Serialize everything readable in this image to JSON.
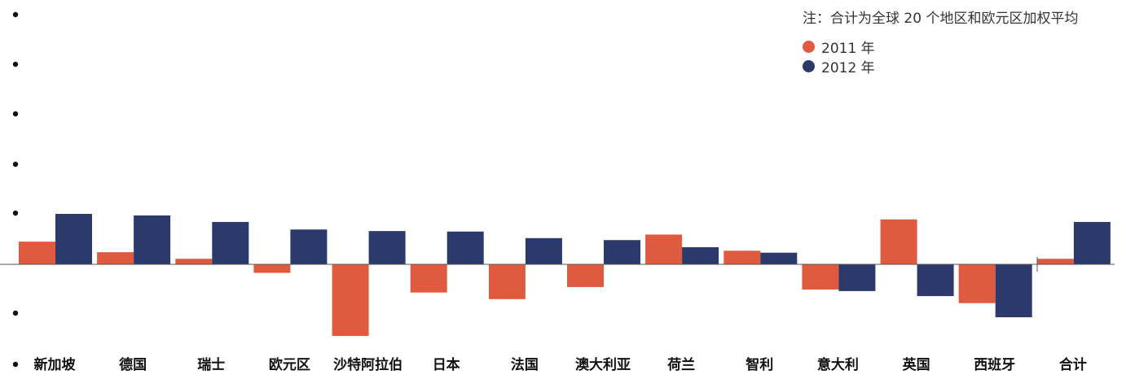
{
  "chart_data": {
    "type": "bar",
    "title": "",
    "note": "注：合计为全球 20 个地区和欧元区加权平均",
    "categories": [
      "新加坡",
      "德国",
      "瑞士",
      "欧元区",
      "沙特阿拉伯",
      "日本",
      "法国",
      "澳大利亚",
      "荷兰",
      "智利",
      "意大利",
      "英国",
      "西班牙",
      "合计"
    ],
    "series": [
      {
        "name": "2011 年",
        "color": "#e05a3f",
        "values": [
          0.45,
          0.24,
          0.11,
          -0.17,
          -1.42,
          -0.56,
          -0.69,
          -0.45,
          0.59,
          0.27,
          -0.5,
          0.89,
          -0.77,
          0.11
        ]
      },
      {
        "name": "2012 年",
        "color": "#2b3a6b",
        "values": [
          1.0,
          0.97,
          0.84,
          0.69,
          0.66,
          0.65,
          0.52,
          0.48,
          0.34,
          0.23,
          -0.53,
          -0.63,
          -1.05,
          0.84
        ]
      }
    ],
    "ylim": [
      -1.45,
      1.25
    ],
    "y_ticks": [
      -1,
      0,
      1,
      2,
      3,
      4,
      5
    ],
    "y_tick_labels_visible": false,
    "grid": false,
    "legend_position": "top-right"
  }
}
